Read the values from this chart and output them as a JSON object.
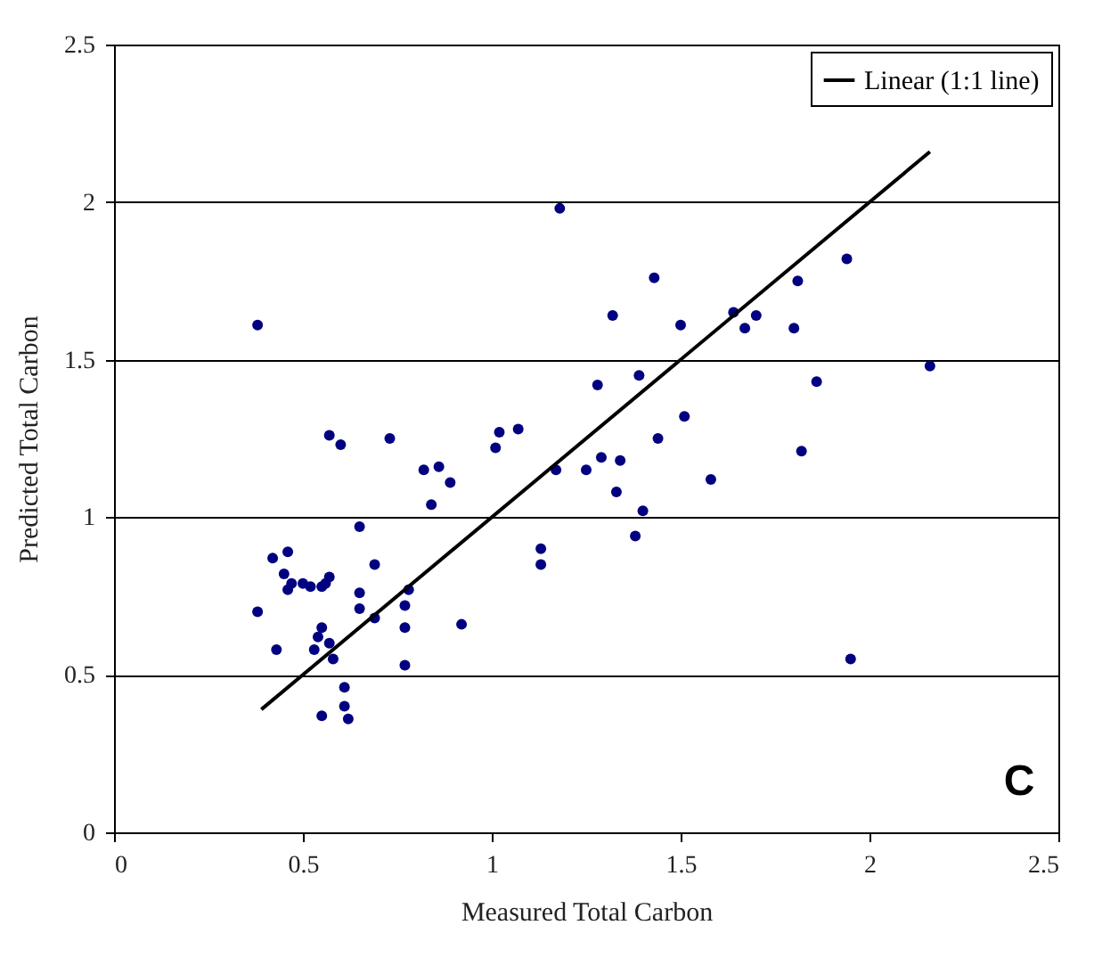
{
  "chart_data": {
    "type": "scatter",
    "xlabel": "Measured Total Carbon",
    "ylabel": "Predicted Total Carbon",
    "xlim": [
      0,
      2.5
    ],
    "xticks": [
      0,
      0.5,
      1,
      1.5,
      2,
      2.5
    ],
    "ylim": [
      0,
      2.5
    ],
    "yticks": [
      0,
      0.5,
      1,
      1.5,
      2,
      2.5
    ],
    "grid": "y",
    "legend": "top right",
    "annotations": [
      "C"
    ],
    "series": [
      {
        "color": "#000080",
        "marker": "circle",
        "x": [
          0.38,
          0.38,
          0.42,
          0.43,
          0.45,
          0.46,
          0.46,
          0.47,
          0.5,
          0.52,
          0.53,
          0.54,
          0.55,
          0.55,
          0.56,
          0.57,
          0.55,
          0.57,
          0.57,
          0.58,
          0.6,
          0.61,
          0.61,
          0.62,
          0.65,
          0.65,
          0.65,
          0.69,
          0.69,
          0.73,
          0.77,
          0.77,
          0.77,
          0.78,
          0.82,
          0.84,
          0.86,
          0.89,
          0.92,
          1.01,
          1.02,
          1.07,
          1.13,
          1.13,
          1.17,
          1.18,
          1.25,
          1.28,
          1.29,
          1.32,
          1.33,
          1.34,
          1.38,
          1.39,
          1.4,
          1.43,
          1.44,
          1.5,
          1.51,
          1.58,
          1.64,
          1.67,
          1.7,
          1.8,
          1.81,
          1.82,
          1.86,
          1.94,
          1.95,
          2.16
        ],
        "values": [
          1.61,
          0.7,
          0.87,
          0.58,
          0.82,
          0.89,
          0.77,
          0.79,
          0.79,
          0.78,
          0.58,
          0.62,
          0.65,
          0.78,
          0.79,
          0.81,
          0.37,
          1.26,
          0.6,
          0.55,
          1.23,
          0.46,
          0.4,
          0.36,
          0.97,
          0.76,
          0.71,
          0.85,
          0.68,
          1.25,
          0.72,
          0.65,
          0.53,
          0.77,
          1.15,
          1.04,
          1.16,
          1.11,
          0.66,
          1.22,
          1.27,
          1.28,
          0.9,
          0.85,
          1.15,
          1.98,
          1.15,
          1.42,
          1.19,
          1.64,
          1.08,
          1.18,
          0.94,
          1.45,
          1.02,
          1.76,
          1.25,
          1.61,
          1.32,
          1.12,
          1.65,
          1.6,
          1.64,
          1.6,
          1.75,
          1.21,
          1.43,
          1.82,
          0.55,
          1.48
        ]
      },
      {
        "type": "line",
        "name": "Linear (1:1 line)",
        "color": "#000000",
        "line_style": "solid",
        "x": [
          0.39,
          2.16
        ],
        "values": [
          0.39,
          2.16
        ]
      }
    ]
  }
}
